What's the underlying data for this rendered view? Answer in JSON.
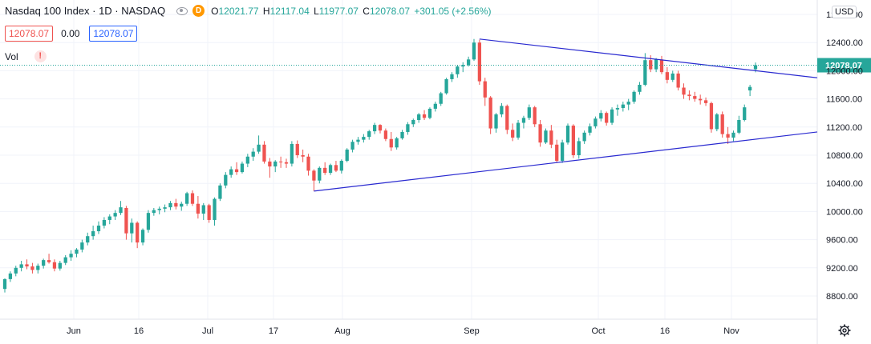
{
  "header": {
    "symbol": "Nasdaq 100 Index · 1D · NASDAQ",
    "ohlc": [
      {
        "k": "O",
        "v": "12021.77"
      },
      {
        "k": "H",
        "v": "12117.04"
      },
      {
        "k": "L",
        "v": "11977.07"
      },
      {
        "k": "C",
        "v": "12078.07"
      }
    ],
    "change": "+301.05 (+2.56%)",
    "sell_price": "12078.07",
    "spread": "0.00",
    "buy_price": "12078.07",
    "vol_label": "Vol",
    "currency": "USD",
    "last_price_label": "12078.07"
  },
  "colors": {
    "up": "#26a69a",
    "down": "#ef5350",
    "trend": "#2a2ad0",
    "grid": "#f0f3fa",
    "price_line": "#26a69a"
  },
  "icons": [
    "eye-icon",
    "d-badge-icon",
    "warning-icon",
    "gear-icon"
  ],
  "chart_data": {
    "type": "candlestick",
    "y_ticks": [
      "8800.00",
      "9200.00",
      "9600.00",
      "10000.00",
      "10400.00",
      "10800.00",
      "11200.00",
      "11600.00",
      "12000.00",
      "12400.00",
      "12800.00"
    ],
    "ylim": [
      8500,
      12900
    ],
    "x_ticks": [
      "Jun",
      "16",
      "Jul",
      "17",
      "Aug",
      "Sep",
      "Oct",
      "16",
      "Nov"
    ],
    "last_price": 12078.07,
    "trendlines": [
      {
        "from": 12450,
        "to": 11900
      },
      {
        "from": 10290,
        "to": 11130
      }
    ],
    "candles": [
      [
        8900,
        9050,
        8850,
        9040
      ],
      [
        9040,
        9150,
        9000,
        9120
      ],
      [
        9120,
        9230,
        9080,
        9200
      ],
      [
        9200,
        9300,
        9150,
        9250
      ],
      [
        9250,
        9320,
        9180,
        9220
      ],
      [
        9220,
        9270,
        9120,
        9170
      ],
      [
        9170,
        9260,
        9120,
        9230
      ],
      [
        9230,
        9330,
        9190,
        9310
      ],
      [
        9310,
        9400,
        9260,
        9280
      ],
      [
        9280,
        9320,
        9150,
        9190
      ],
      [
        9190,
        9300,
        9160,
        9270
      ],
      [
        9270,
        9380,
        9240,
        9350
      ],
      [
        9350,
        9450,
        9300,
        9400
      ],
      [
        9400,
        9480,
        9350,
        9460
      ],
      [
        9460,
        9600,
        9420,
        9560
      ],
      [
        9560,
        9700,
        9520,
        9650
      ],
      [
        9650,
        9800,
        9600,
        9720
      ],
      [
        9720,
        9860,
        9680,
        9800
      ],
      [
        9800,
        9920,
        9760,
        9880
      ],
      [
        9880,
        9960,
        9820,
        9930
      ],
      [
        9930,
        10020,
        9880,
        9980
      ],
      [
        9980,
        10150,
        9950,
        10060
      ],
      [
        10050,
        10080,
        9600,
        9690
      ],
      [
        9690,
        9900,
        9560,
        9840
      ],
      [
        9840,
        9860,
        9480,
        9560
      ],
      [
        9560,
        9760,
        9520,
        9740
      ],
      [
        9740,
        10020,
        9700,
        9980
      ],
      [
        9980,
        10050,
        9940,
        10020
      ],
      [
        10020,
        10070,
        9960,
        10040
      ],
      [
        10040,
        10100,
        9990,
        10060
      ],
      [
        10060,
        10150,
        10020,
        10120
      ],
      [
        10120,
        10180,
        10030,
        10070
      ],
      [
        10070,
        10140,
        10010,
        10110
      ],
      [
        10110,
        10280,
        10080,
        10260
      ],
      [
        10260,
        10300,
        10080,
        10110
      ],
      [
        10110,
        10220,
        9900,
        9970
      ],
      [
        9970,
        10120,
        9880,
        10090
      ],
      [
        10090,
        10110,
        9840,
        9880
      ],
      [
        9880,
        10200,
        9800,
        10180
      ],
      [
        10180,
        10400,
        10150,
        10370
      ],
      [
        10370,
        10560,
        10330,
        10520
      ],
      [
        10520,
        10640,
        10480,
        10600
      ],
      [
        10600,
        10700,
        10520,
        10560
      ],
      [
        10560,
        10710,
        10540,
        10680
      ],
      [
        10680,
        10820,
        10630,
        10780
      ],
      [
        10780,
        10900,
        10720,
        10850
      ],
      [
        10850,
        11080,
        10820,
        10950
      ],
      [
        10950,
        11000,
        10680,
        10710
      ],
      [
        10710,
        10760,
        10480,
        10640
      ],
      [
        10640,
        10730,
        10560,
        10710
      ],
      [
        10710,
        10780,
        10620,
        10700
      ],
      [
        10700,
        10750,
        10620,
        10680
      ],
      [
        10680,
        11000,
        10640,
        10960
      ],
      [
        10960,
        11010,
        10760,
        10800
      ],
      [
        10800,
        10880,
        10700,
        10780
      ],
      [
        10780,
        10820,
        10510,
        10580
      ],
      [
        10580,
        10600,
        10290,
        10440
      ],
      [
        10440,
        10640,
        10400,
        10620
      ],
      [
        10620,
        10700,
        10520,
        10550
      ],
      [
        10550,
        10680,
        10520,
        10660
      ],
      [
        10660,
        10720,
        10560,
        10580
      ],
      [
        10580,
        10740,
        10540,
        10720
      ],
      [
        10720,
        10900,
        10700,
        10880
      ],
      [
        10880,
        11020,
        10840,
        10990
      ],
      [
        10990,
        11060,
        10950,
        11020
      ],
      [
        11020,
        11100,
        10980,
        11060
      ],
      [
        11060,
        11160,
        11020,
        11140
      ],
      [
        11140,
        11260,
        11100,
        11230
      ],
      [
        11230,
        11240,
        11110,
        11150
      ],
      [
        11150,
        11180,
        11000,
        11030
      ],
      [
        11030,
        11130,
        10860,
        10910
      ],
      [
        10910,
        11060,
        10880,
        11040
      ],
      [
        11040,
        11160,
        11020,
        11130
      ],
      [
        11130,
        11270,
        11090,
        11240
      ],
      [
        11240,
        11320,
        11200,
        11300
      ],
      [
        11300,
        11400,
        11260,
        11380
      ],
      [
        11380,
        11440,
        11300,
        11330
      ],
      [
        11330,
        11480,
        11310,
        11460
      ],
      [
        11460,
        11560,
        11420,
        11530
      ],
      [
        11530,
        11700,
        11500,
        11680
      ],
      [
        11680,
        11900,
        11660,
        11880
      ],
      [
        11880,
        11980,
        11840,
        11950
      ],
      [
        11950,
        12080,
        11900,
        12060
      ],
      [
        12060,
        12120,
        11980,
        12080
      ],
      [
        12080,
        12200,
        12060,
        12160
      ],
      [
        12160,
        12450,
        12140,
        12400
      ],
      [
        12400,
        12440,
        11800,
        11850
      ],
      [
        11850,
        11900,
        11500,
        11620
      ],
      [
        11620,
        11640,
        11100,
        11180
      ],
      [
        11180,
        11400,
        11120,
        11380
      ],
      [
        11380,
        11540,
        11340,
        11500
      ],
      [
        11500,
        11520,
        11100,
        11160
      ],
      [
        11160,
        11250,
        11000,
        11050
      ],
      [
        11050,
        11300,
        11020,
        11260
      ],
      [
        11260,
        11360,
        11180,
        11330
      ],
      [
        11330,
        11520,
        11300,
        11480
      ],
      [
        11480,
        11500,
        11200,
        11240
      ],
      [
        11240,
        11300,
        10920,
        10980
      ],
      [
        10980,
        11180,
        10960,
        11150
      ],
      [
        11150,
        11230,
        10900,
        10950
      ],
      [
        10950,
        11020,
        10690,
        10720
      ],
      [
        10720,
        11020,
        10690,
        10980
      ],
      [
        10980,
        11250,
        10950,
        11220
      ],
      [
        11220,
        11240,
        10760,
        10800
      ],
      [
        10800,
        11050,
        10750,
        11000
      ],
      [
        11000,
        11150,
        10960,
        11120
      ],
      [
        11120,
        11250,
        11080,
        11210
      ],
      [
        11210,
        11350,
        11180,
        11320
      ],
      [
        11320,
        11440,
        11280,
        11400
      ],
      [
        11400,
        11420,
        11220,
        11260
      ],
      [
        11260,
        11480,
        11230,
        11450
      ],
      [
        11450,
        11520,
        11360,
        11470
      ],
      [
        11470,
        11560,
        11420,
        11520
      ],
      [
        11520,
        11600,
        11440,
        11560
      ],
      [
        11560,
        11720,
        11530,
        11700
      ],
      [
        11700,
        11840,
        11660,
        11800
      ],
      [
        11800,
        12250,
        11780,
        12150
      ],
      [
        12150,
        12220,
        11980,
        12020
      ],
      [
        12020,
        12180,
        11980,
        12160
      ],
      [
        12160,
        12210,
        11950,
        11980
      ],
      [
        11980,
        12050,
        11820,
        11870
      ],
      [
        11870,
        12000,
        11840,
        11960
      ],
      [
        11960,
        12000,
        11720,
        11760
      ],
      [
        11760,
        11820,
        11600,
        11660
      ],
      [
        11660,
        11720,
        11580,
        11640
      ],
      [
        11640,
        11700,
        11560,
        11600
      ],
      [
        11600,
        11660,
        11520,
        11580
      ],
      [
        11580,
        11620,
        11500,
        11540
      ],
      [
        11540,
        11560,
        11120,
        11170
      ],
      [
        11170,
        11400,
        11140,
        11380
      ],
      [
        11380,
        11420,
        11050,
        11100
      ],
      [
        11100,
        11200,
        10960,
        11050
      ],
      [
        11050,
        11150,
        11000,
        11120
      ],
      [
        11120,
        11360,
        11100,
        11300
      ],
      [
        11300,
        11520,
        11280,
        11480
      ],
      [
        11720,
        11800,
        11640,
        11770
      ],
      [
        12021,
        12117,
        11977,
        12078
      ]
    ]
  }
}
